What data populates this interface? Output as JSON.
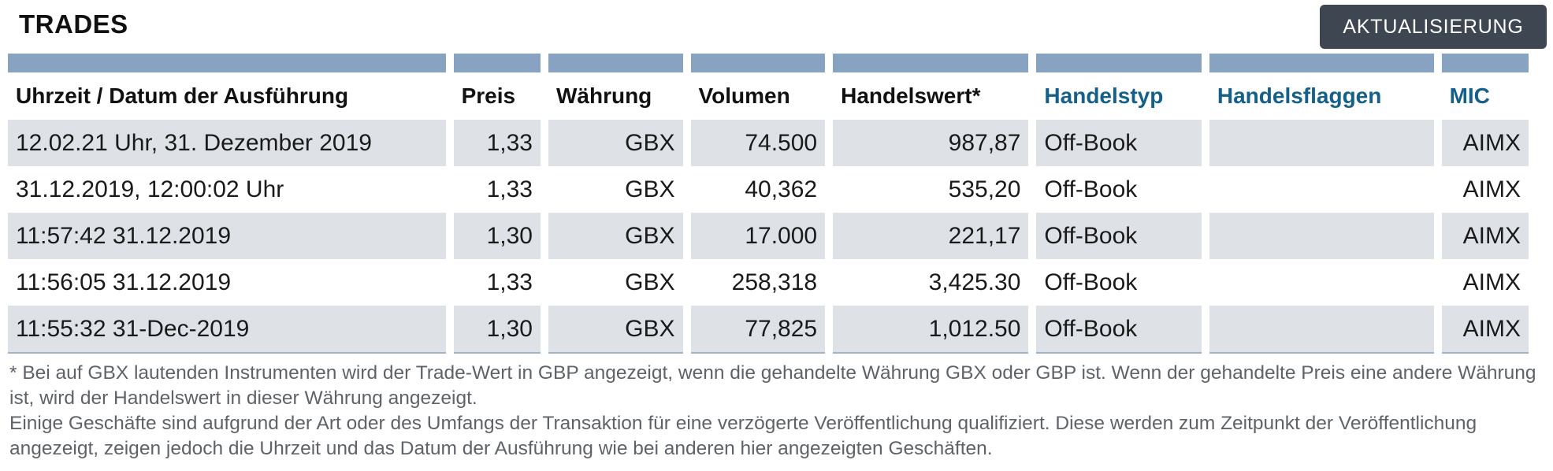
{
  "header": {
    "title": "TRADES",
    "refresh_label": "AKTUALISIERUNG"
  },
  "table": {
    "columns": [
      "Uhrzeit / Datum der Ausführung",
      "Preis",
      "Währung",
      "Volumen",
      "Handelswert*",
      "Handelstyp",
      "Handelsflaggen",
      "MIC"
    ],
    "rows": [
      [
        "12.02.21 Uhr, 31. Dezember 2019",
        "1,33",
        "GBX",
        "74.500",
        "987,87",
        "Off-Book",
        "",
        "AIMX"
      ],
      [
        "31.12.2019, 12:00:02 Uhr",
        "1,33",
        "GBX",
        "40,362",
        "535,20",
        "Off-Book",
        "",
        "AIMX"
      ],
      [
        "11:57:42 31.12.2019",
        "1,30",
        "GBX",
        "17.000",
        "221,17",
        "Off-Book",
        "",
        "AIMX"
      ],
      [
        "11:56:05 31.12.2019",
        "1,33",
        "GBX",
        "258,318",
        "3,425.30",
        "Off-Book",
        "",
        "AIMX"
      ],
      [
        "11:55:32 31-Dec-2019",
        "1,30",
        "GBX",
        "77,825",
        "1,012.50",
        "Off-Book",
        "",
        "AIMX"
      ]
    ]
  },
  "footnote": {
    "line1": "* Bei auf GBX lautenden Instrumenten wird der Trade-Wert in GBP angezeigt, wenn die gehandelte Währung GBX oder GBP ist. Wenn der gehandelte Preis eine andere Währung ist, wird der Handelswert in dieser Währung angezeigt.",
    "line2": "Einige Geschäfte sind aufgrund der Art oder des Umfangs der Transaktion für eine verzögerte Veröffentlichung qualifiziert. Diese werden zum Zeitpunkt der Veröffentlichung angezeigt, zeigen jedoch die Uhrzeit und das Datum der Ausführung wie bei anderen hier angezeigten Geschäften."
  },
  "colors": {
    "header_bar": "#87a3c1",
    "link_header": "#15608a",
    "button_bg": "#3d4651",
    "row_shade": "#dee2e6",
    "footnote_text": "#5f6368"
  }
}
